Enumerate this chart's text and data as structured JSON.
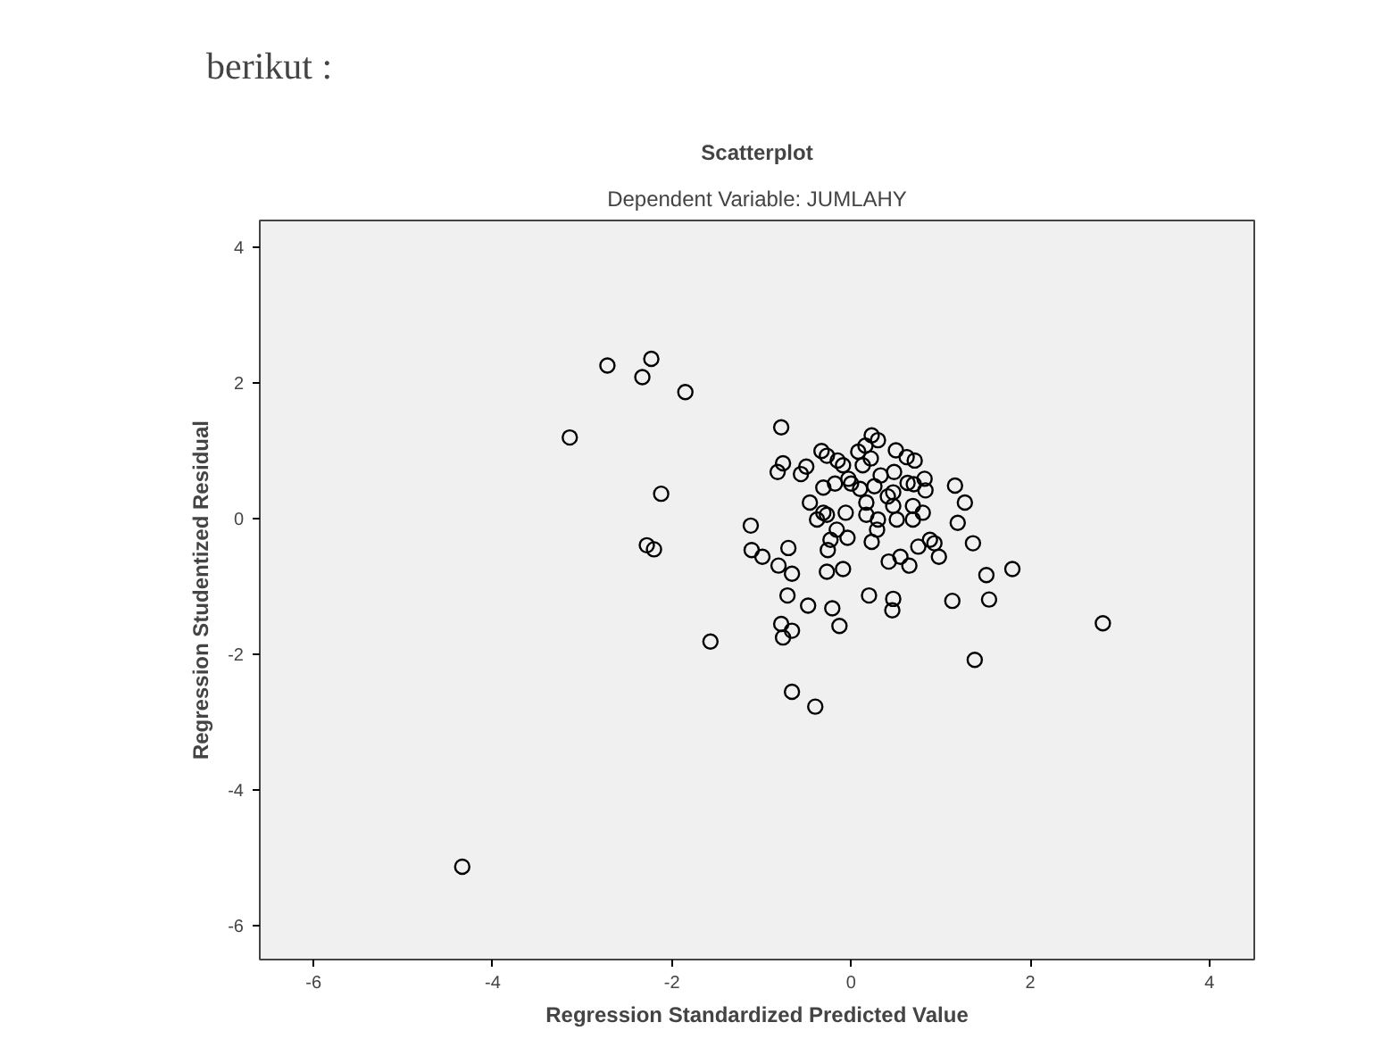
{
  "chart_data": {
    "type": "scatter",
    "title": "Scatterplot",
    "subtitle": "Dependent Variable: JUMLAHY",
    "xlabel": "Regression Standardized Predicted Value",
    "ylabel": "Regression Studentized Residual",
    "annotations": [
      "berikut :"
    ],
    "xlim": [
      -6.6,
      4.5
    ],
    "ylim": [
      -6.5,
      4.4
    ],
    "xticks": [
      -6,
      -4,
      -2,
      0,
      2,
      4
    ],
    "yticks": [
      -6,
      -4,
      -2,
      0,
      2,
      4
    ],
    "grid": false,
    "marker": "circle",
    "series": [
      {
        "color": "#000000",
        "x": [
          -2.72,
          -2.23,
          -2.33,
          -1.85,
          -3.14,
          -2.12,
          -2.28,
          -2.2,
          -1.57,
          -4.34,
          -0.78,
          -0.76,
          -0.82,
          -0.5,
          -0.56,
          -0.33,
          -0.27,
          -0.15,
          -0.09,
          0.23,
          0.3,
          0.16,
          0.08,
          0.22,
          0.13,
          0.5,
          0.62,
          0.71,
          0.82,
          0.7,
          0.83,
          0.48,
          0.33,
          0.47,
          0.47,
          0.51,
          0.69,
          0.8,
          0.69,
          0.17,
          0.17,
          0.3,
          0.29,
          0.23,
          -0.03,
          0.0,
          -0.18,
          -0.31,
          -0.46,
          -0.31,
          -0.38,
          -0.06,
          -0.16,
          -0.23,
          -0.04,
          -0.26,
          -1.12,
          -1.11,
          -0.99,
          -0.7,
          -0.81,
          -0.66,
          -0.71,
          -0.48,
          -0.27,
          -0.09,
          -0.21,
          -0.13,
          -0.78,
          -0.76,
          -0.66,
          -0.66,
          -0.4,
          0.2,
          0.47,
          0.46,
          0.42,
          0.55,
          0.65,
          0.75,
          0.88,
          0.93,
          0.98,
          1.16,
          1.27,
          1.19,
          1.36,
          1.51,
          1.8,
          1.54,
          1.13,
          1.38,
          2.81,
          -0.27,
          0.1,
          0.26,
          0.41,
          0.63
        ],
        "values": [
          2.26,
          2.36,
          2.09,
          1.87,
          1.2,
          0.37,
          -0.39,
          -0.45,
          -1.81,
          -5.13,
          1.35,
          0.82,
          0.69,
          0.77,
          0.66,
          1.0,
          0.93,
          0.86,
          0.79,
          1.23,
          1.16,
          1.08,
          0.99,
          0.89,
          0.79,
          1.01,
          0.91,
          0.86,
          0.59,
          0.51,
          0.42,
          0.69,
          0.64,
          0.39,
          0.19,
          -0.01,
          -0.01,
          0.09,
          0.19,
          0.24,
          0.06,
          -0.01,
          -0.16,
          -0.34,
          0.59,
          0.52,
          0.52,
          0.46,
          0.24,
          0.09,
          -0.01,
          0.09,
          -0.16,
          -0.31,
          -0.28,
          -0.46,
          -0.1,
          -0.46,
          -0.56,
          -0.43,
          -0.69,
          -0.81,
          -1.13,
          -1.28,
          -0.78,
          -0.74,
          -1.32,
          -1.58,
          -1.55,
          -1.75,
          -1.65,
          -2.55,
          -2.77,
          -1.13,
          -1.18,
          -1.35,
          -0.63,
          -0.56,
          -0.69,
          -0.41,
          -0.31,
          -0.36,
          -0.56,
          0.49,
          0.24,
          -0.06,
          -0.36,
          -0.83,
          -0.74,
          -1.19,
          -1.21,
          -2.08,
          -1.54,
          0.06,
          0.44,
          0.48,
          0.33,
          0.53
        ]
      }
    ]
  }
}
